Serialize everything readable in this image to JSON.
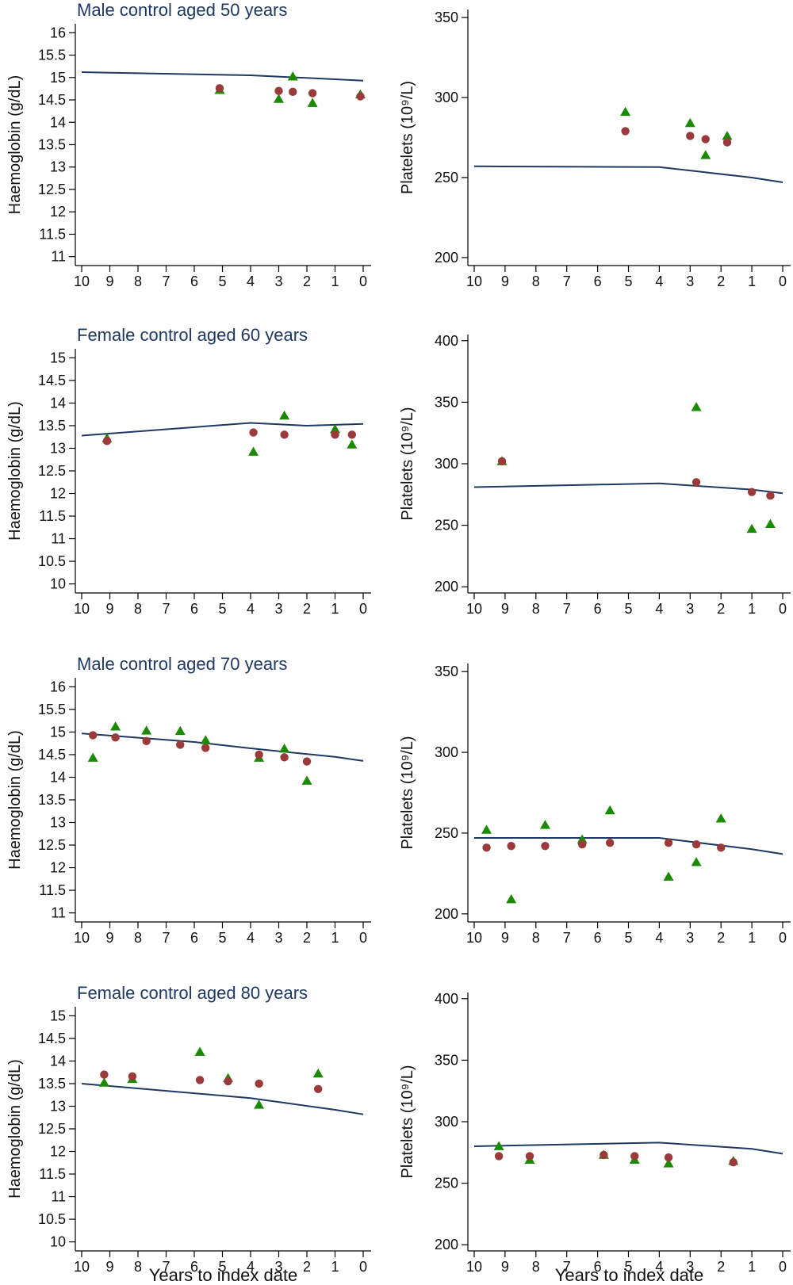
{
  "figure": {
    "x_axis_label": "Years to index date",
    "marker_colors": {
      "trend": "#1f3864",
      "circle": "#9b3a3a",
      "triangle": "#1a8a00"
    }
  },
  "chart_data": [
    {
      "id": "male50-hb",
      "type": "scatter",
      "title": "Male control aged 50 years",
      "ylabel": "Haemoglobin (g/dL)",
      "xlabel": "",
      "xlim": [
        10,
        0
      ],
      "xticks": [
        "10",
        "9",
        "8",
        "7",
        "6",
        "5",
        "4",
        "3",
        "2",
        "1",
        "0"
      ],
      "ylim": [
        10.8,
        16.2
      ],
      "yticks": [
        "11",
        "11.5",
        "12",
        "12.5",
        "13",
        "13.5",
        "14",
        "14.5",
        "15",
        "15.5",
        "16"
      ],
      "trend": {
        "x": [
          10,
          4,
          1,
          0
        ],
        "y": [
          15.12,
          15.05,
          14.96,
          14.93
        ]
      },
      "circles": {
        "x": [
          5.1,
          3.0,
          2.5,
          1.8,
          0.1
        ],
        "y": [
          14.76,
          14.7,
          14.68,
          14.65,
          14.58
        ]
      },
      "triangles": {
        "x": [
          5.1,
          3.0,
          2.5,
          1.8,
          0.1
        ],
        "y": [
          14.72,
          14.52,
          15.02,
          14.43,
          14.62
        ]
      }
    },
    {
      "id": "male50-plt",
      "type": "scatter",
      "title": "",
      "ylabel": "Platelets (10⁹/L)",
      "xlabel": "",
      "xlim": [
        10,
        0
      ],
      "xticks": [
        "10",
        "9",
        "8",
        "7",
        "6",
        "5",
        "4",
        "3",
        "2",
        "1",
        "0"
      ],
      "ylim": [
        195,
        355
      ],
      "yticks": [
        "200",
        "250",
        "300",
        "350"
      ],
      "trend": {
        "x": [
          10,
          4,
          1,
          0
        ],
        "y": [
          257,
          256.5,
          250,
          247
        ]
      },
      "circles": {
        "x": [
          5.1,
          3.0,
          2.5,
          1.8
        ],
        "y": [
          279,
          276,
          274,
          272
        ]
      },
      "triangles": {
        "x": [
          5.1,
          3.0,
          2.5,
          1.8
        ],
        "y": [
          291,
          284,
          264,
          276
        ]
      }
    },
    {
      "id": "female60-hb",
      "type": "scatter",
      "title": "Female control aged 60 years",
      "ylabel": "Haemoglobin (g/dL)",
      "xlabel": "",
      "xlim": [
        10,
        0
      ],
      "xticks": [
        "10",
        "9",
        "8",
        "7",
        "6",
        "5",
        "4",
        "3",
        "2",
        "1",
        "0"
      ],
      "ylim": [
        9.8,
        15.2
      ],
      "yticks": [
        "10",
        "10.5",
        "11",
        "11.5",
        "12",
        "12.5",
        "13",
        "13.5",
        "14",
        "14.5",
        "15"
      ],
      "trend": {
        "x": [
          10,
          4,
          2,
          0
        ],
        "y": [
          13.28,
          13.56,
          13.5,
          13.54
        ]
      },
      "circles": {
        "x": [
          9.1,
          3.9,
          2.8,
          1.0,
          0.4
        ],
        "y": [
          13.16,
          13.35,
          13.3,
          13.3,
          13.3
        ]
      },
      "triangles": {
        "x": [
          9.1,
          3.9,
          2.8,
          1.0,
          0.4
        ],
        "y": [
          13.22,
          12.92,
          13.72,
          13.42,
          13.08
        ]
      }
    },
    {
      "id": "female60-plt",
      "type": "scatter",
      "title": "",
      "ylabel": "Platelets (10⁹/L)",
      "xlabel": "",
      "xlim": [
        10,
        0
      ],
      "xticks": [
        "10",
        "9",
        "8",
        "7",
        "6",
        "5",
        "4",
        "3",
        "2",
        "1",
        "0"
      ],
      "ylim": [
        195,
        405
      ],
      "yticks": [
        "200",
        "250",
        "300",
        "350",
        "400"
      ],
      "trend": {
        "x": [
          10,
          4,
          1,
          0
        ],
        "y": [
          281,
          284,
          279,
          276
        ]
      },
      "circles": {
        "x": [
          9.1,
          2.8,
          1.0,
          0.4
        ],
        "y": [
          302,
          285,
          277,
          274
        ]
      },
      "triangles": {
        "x": [
          9.1,
          2.8,
          1.0,
          0.4
        ],
        "y": [
          302,
          346,
          247,
          251
        ]
      }
    },
    {
      "id": "male70-hb",
      "type": "scatter",
      "title": "Male control aged 70 years",
      "ylabel": "Haemoglobin (g/dL)",
      "xlabel": "",
      "xlim": [
        10,
        0
      ],
      "xticks": [
        "10",
        "9",
        "8",
        "7",
        "6",
        "5",
        "4",
        "3",
        "2",
        "1",
        "0"
      ],
      "ylim": [
        10.8,
        16.2
      ],
      "yticks": [
        "11",
        "11.5",
        "12",
        "12.5",
        "13",
        "13.5",
        "14",
        "14.5",
        "15",
        "15.5",
        "16"
      ],
      "trend": {
        "x": [
          10,
          6,
          4,
          1,
          0
        ],
        "y": [
          14.97,
          14.78,
          14.64,
          14.45,
          14.36
        ]
      },
      "circles": {
        "x": [
          9.6,
          8.8,
          7.7,
          6.5,
          5.6,
          3.7,
          2.8,
          2.0
        ],
        "y": [
          14.93,
          14.88,
          14.8,
          14.72,
          14.65,
          14.5,
          14.44,
          14.35
        ]
      },
      "triangles": {
        "x": [
          9.6,
          8.8,
          7.7,
          6.5,
          5.6,
          3.7,
          2.8,
          2.0
        ],
        "y": [
          14.43,
          15.12,
          15.03,
          15.02,
          14.82,
          14.43,
          14.63,
          13.92
        ]
      }
    },
    {
      "id": "male70-plt",
      "type": "scatter",
      "title": "",
      "ylabel": "Platelets (10⁹/L)",
      "xlabel": "",
      "xlim": [
        10,
        0
      ],
      "xticks": [
        "10",
        "9",
        "8",
        "7",
        "6",
        "5",
        "4",
        "3",
        "2",
        "1",
        "0"
      ],
      "ylim": [
        195,
        355
      ],
      "yticks": [
        "200",
        "250",
        "300",
        "350"
      ],
      "trend": {
        "x": [
          10,
          4,
          1,
          0
        ],
        "y": [
          247,
          247,
          240,
          237
        ]
      },
      "circles": {
        "x": [
          9.6,
          8.8,
          7.7,
          6.5,
          5.6,
          3.7,
          2.8,
          2.0
        ],
        "y": [
          241,
          242,
          242,
          243,
          244,
          244,
          243,
          241
        ]
      },
      "triangles": {
        "x": [
          9.6,
          8.8,
          7.7,
          6.5,
          5.6,
          3.7,
          2.8,
          2.0
        ],
        "y": [
          252,
          209,
          255,
          246,
          264,
          223,
          232,
          259
        ]
      }
    },
    {
      "id": "female80-hb",
      "type": "scatter",
      "title": "Female control aged 80 years",
      "ylabel": "Haemoglobin (g/dL)",
      "xlabel": "Years to index date",
      "xlim": [
        10,
        0
      ],
      "xticks": [
        "10",
        "9",
        "8",
        "7",
        "6",
        "5",
        "4",
        "3",
        "2",
        "1",
        "0"
      ],
      "ylim": [
        9.8,
        15.2
      ],
      "yticks": [
        "10",
        "10.5",
        "11",
        "11.5",
        "12",
        "12.5",
        "13",
        "13.5",
        "14",
        "14.5",
        "15"
      ],
      "trend": {
        "x": [
          10,
          4,
          1,
          0
        ],
        "y": [
          13.5,
          13.18,
          12.92,
          12.82
        ]
      },
      "circles": {
        "x": [
          9.2,
          8.2,
          5.8,
          4.8,
          3.7,
          1.6
        ],
        "y": [
          13.7,
          13.66,
          13.58,
          13.55,
          13.5,
          13.38
        ]
      },
      "triangles": {
        "x": [
          9.2,
          8.2,
          5.8,
          4.8,
          3.7,
          1.6
        ],
        "y": [
          13.52,
          13.6,
          14.2,
          13.62,
          13.03,
          13.72
        ]
      }
    },
    {
      "id": "female80-plt",
      "type": "scatter",
      "title": "",
      "ylabel": "Platelets (10⁹/L)",
      "xlabel": "Years to index date",
      "xlim": [
        10,
        0
      ],
      "xticks": [
        "10",
        "9",
        "8",
        "7",
        "6",
        "5",
        "4",
        "3",
        "2",
        "1",
        "0"
      ],
      "ylim": [
        195,
        405
      ],
      "yticks": [
        "200",
        "250",
        "300",
        "350",
        "400"
      ],
      "trend": {
        "x": [
          10,
          4,
          1,
          0
        ],
        "y": [
          280,
          283,
          278,
          274
        ]
      },
      "circles": {
        "x": [
          9.2,
          8.2,
          5.8,
          4.8,
          3.7,
          1.6
        ],
        "y": [
          272,
          272,
          273,
          272,
          271,
          267
        ]
      },
      "triangles": {
        "x": [
          9.2,
          8.2,
          5.8,
          4.8,
          3.7,
          1.6
        ],
        "y": [
          280,
          269,
          273,
          269,
          266,
          268
        ]
      }
    }
  ]
}
